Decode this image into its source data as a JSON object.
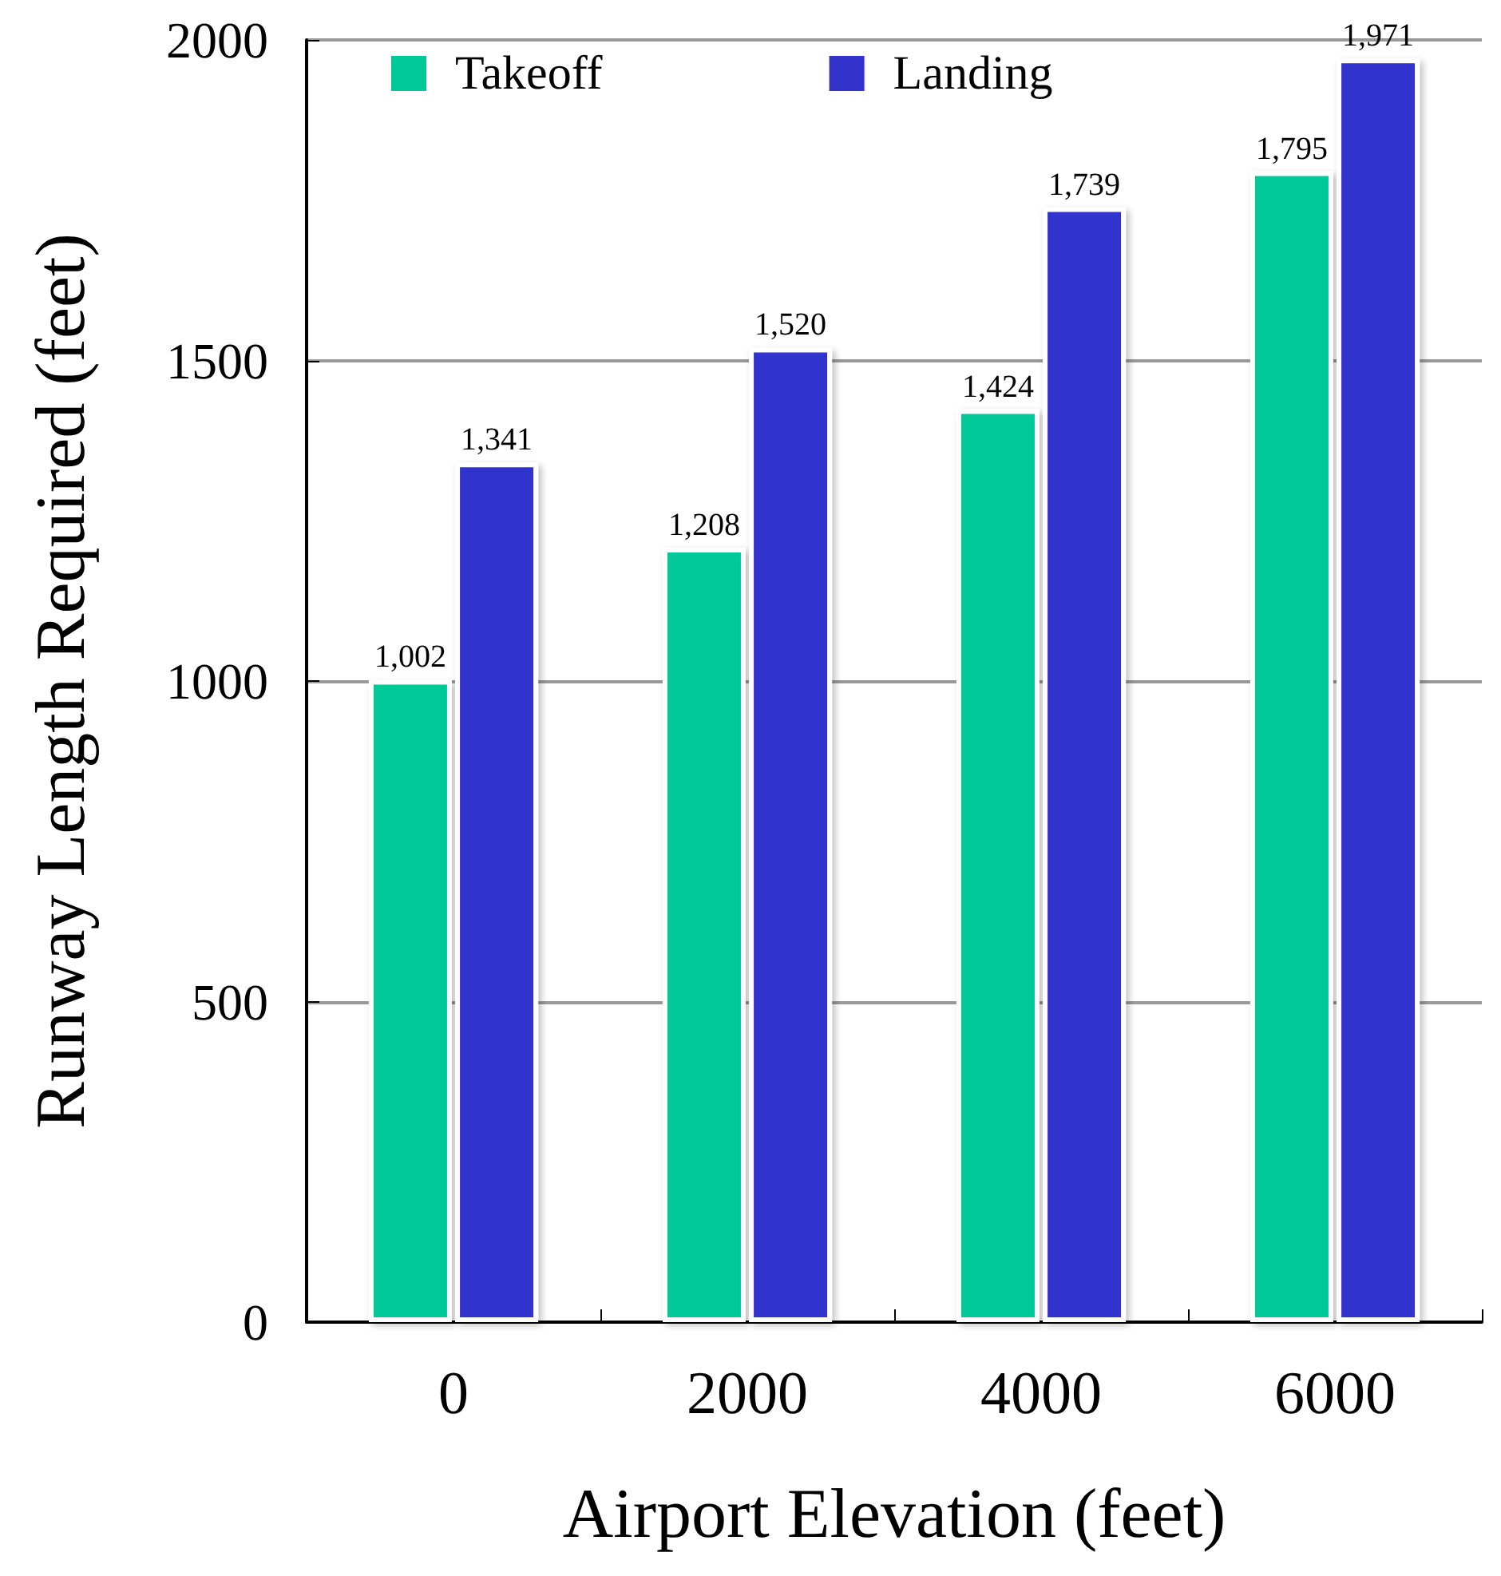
{
  "chart_data": {
    "type": "bar",
    "xlabel": "Airport Elevation (feet)",
    "ylabel": "Runway Length Required (feet)",
    "categories": [
      "0",
      "2000",
      "4000",
      "6000"
    ],
    "series": [
      {
        "name": "Takeoff",
        "color": "#00c896",
        "values": [
          1002,
          1208,
          1424,
          1795
        ],
        "value_labels": [
          "1,002",
          "1,208",
          "1,424",
          "1,795"
        ]
      },
      {
        "name": "Landing",
        "color": "#3333cc",
        "values": [
          1341,
          1520,
          1739,
          1971
        ],
        "value_labels": [
          "1,341",
          "1,520",
          "1,739",
          "1,971"
        ]
      }
    ],
    "ylim": [
      0,
      2000
    ],
    "yticks": [
      0,
      500,
      1000,
      1500,
      2000
    ],
    "grid": "y",
    "legend": "top left"
  }
}
